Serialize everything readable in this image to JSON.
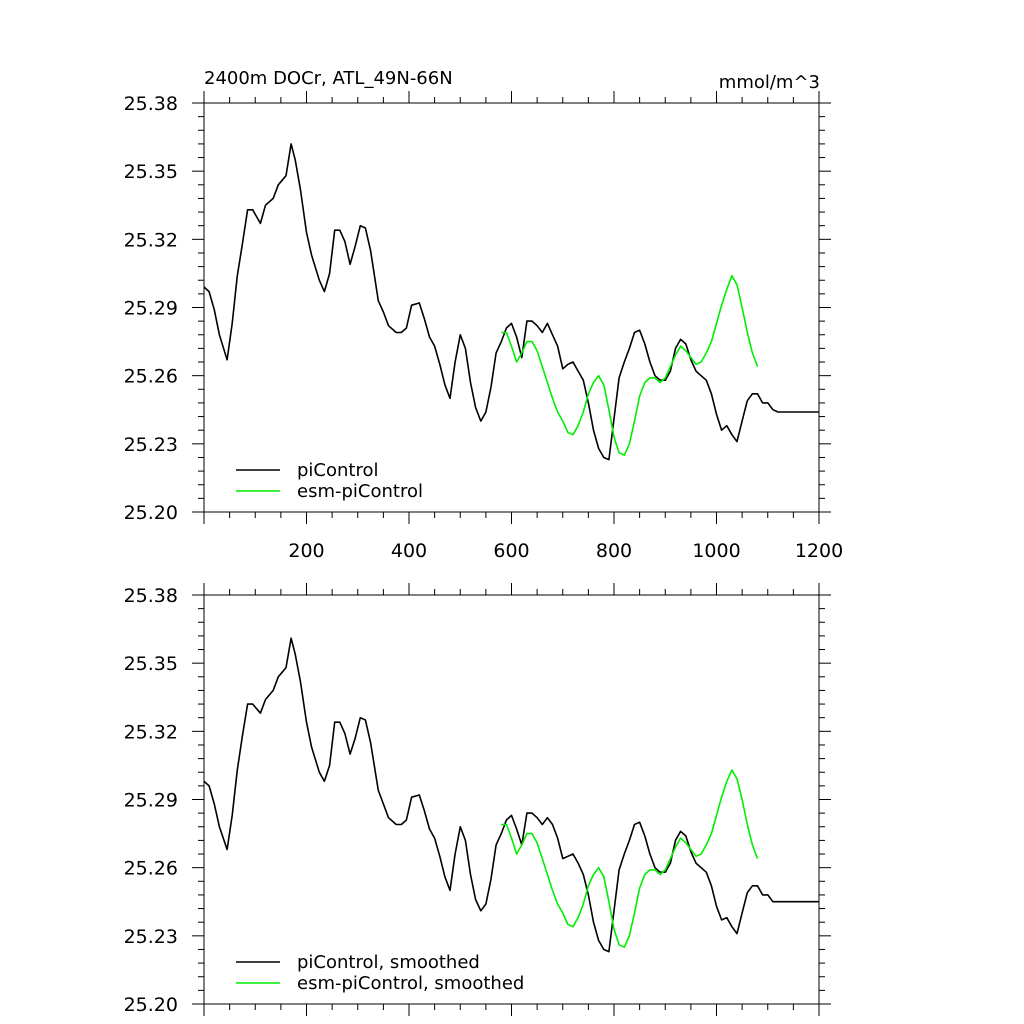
{
  "chart_data": [
    {
      "type": "line",
      "title": "2400m DOCr, ATL_49N-66N",
      "units": "mmol/m^3",
      "xlim": [
        0,
        1200
      ],
      "ylim": [
        25.2,
        25.38
      ],
      "xticks": [
        200,
        400,
        600,
        800,
        1000,
        1200
      ],
      "xtick_labels": [
        "200",
        "400",
        "600",
        "800",
        "1000",
        "1200"
      ],
      "yticks": [
        25.2,
        25.23,
        25.26,
        25.29,
        25.32,
        25.35,
        25.38
      ],
      "ytick_labels": [
        "25.20",
        "25.23",
        "25.26",
        "25.29",
        "25.32",
        "25.35",
        "25.38"
      ],
      "legend_position": "bottom-left",
      "series": [
        {
          "name": "piControl",
          "color": "#000000",
          "x": [
            0,
            10,
            20,
            30,
            45,
            55,
            65,
            75,
            85,
            95,
            110,
            120,
            135,
            145,
            160,
            170,
            178,
            188,
            200,
            210,
            225,
            235,
            245,
            255,
            265,
            275,
            285,
            295,
            305,
            315,
            325,
            340,
            350,
            360,
            375,
            385,
            395,
            405,
            420,
            430,
            440,
            450,
            460,
            470,
            480,
            490,
            500,
            510,
            520,
            530,
            540,
            550,
            560,
            570,
            580,
            590,
            600,
            610,
            620,
            630,
            640,
            650,
            660,
            670,
            680,
            690,
            700,
            710,
            720,
            730,
            740,
            750,
            760,
            770,
            780,
            790,
            800,
            810,
            820,
            830,
            840,
            850,
            860,
            870,
            880,
            890,
            900,
            910,
            920,
            930,
            940,
            950,
            960,
            970,
            980,
            990,
            1000,
            1010,
            1020,
            1030,
            1040,
            1050,
            1060,
            1070,
            1080,
            1090,
            1100,
            1110,
            1120,
            1130,
            1140,
            1150,
            1160,
            1170,
            1180,
            1190,
            1200
          ],
          "y": [
            25.299,
            25.297,
            25.289,
            25.278,
            25.267,
            25.283,
            25.304,
            25.318,
            25.333,
            25.333,
            25.327,
            25.335,
            25.338,
            25.344,
            25.348,
            25.362,
            25.355,
            25.342,
            25.323,
            25.313,
            25.302,
            25.297,
            25.305,
            25.324,
            25.324,
            25.319,
            25.309,
            25.317,
            25.326,
            25.325,
            25.315,
            25.293,
            25.288,
            25.282,
            25.279,
            25.279,
            25.281,
            25.291,
            25.292,
            25.285,
            25.277,
            25.273,
            25.265,
            25.256,
            25.25,
            25.266,
            25.278,
            25.272,
            25.257,
            25.246,
            25.24,
            25.244,
            25.255,
            25.27,
            25.275,
            25.281,
            25.283,
            25.277,
            25.268,
            25.284,
            25.284,
            25.282,
            25.279,
            25.283,
            25.278,
            25.273,
            25.263,
            25.265,
            25.266,
            25.262,
            25.258,
            25.248,
            25.236,
            25.228,
            25.224,
            25.223,
            25.241,
            25.259,
            25.266,
            25.272,
            25.279,
            25.28,
            25.274,
            25.266,
            25.26,
            25.258,
            25.258,
            25.262,
            25.272,
            25.276,
            25.274,
            25.267,
            25.262,
            25.26,
            25.258,
            25.252,
            25.243,
            25.236,
            25.238,
            25.234,
            25.231,
            25.24,
            25.249,
            25.252,
            25.252,
            25.248,
            25.248,
            25.245,
            25.244,
            25.244,
            25.244,
            25.244,
            25.244,
            25.244,
            25.244,
            25.244,
            25.244
          ]
        },
        {
          "name": "esm-piControl",
          "color": "#00ee00",
          "x": [
            580,
            590,
            600,
            610,
            620,
            630,
            640,
            650,
            660,
            670,
            680,
            690,
            700,
            710,
            720,
            730,
            740,
            750,
            760,
            770,
            780,
            790,
            800,
            810,
            820,
            830,
            840,
            850,
            860,
            870,
            880,
            890,
            900,
            910,
            920,
            930,
            940,
            950,
            960,
            970,
            980,
            990,
            1000,
            1010,
            1020,
            1030,
            1040,
            1050,
            1060,
            1070,
            1080
          ],
          "y": [
            25.279,
            25.279,
            25.273,
            25.266,
            25.27,
            25.275,
            25.275,
            25.271,
            25.264,
            25.257,
            25.25,
            25.244,
            25.24,
            25.235,
            25.234,
            25.238,
            25.244,
            25.252,
            25.257,
            25.26,
            25.256,
            25.245,
            25.233,
            25.226,
            25.225,
            25.23,
            25.24,
            25.251,
            25.257,
            25.259,
            25.259,
            25.257,
            25.259,
            25.264,
            25.269,
            25.273,
            25.271,
            25.268,
            25.265,
            25.266,
            25.27,
            25.275,
            25.283,
            25.291,
            25.298,
            25.304,
            25.3,
            25.29,
            25.279,
            25.27,
            25.264
          ]
        }
      ]
    },
    {
      "type": "line",
      "title": "",
      "xlim": [
        0,
        1200
      ],
      "ylim": [
        25.2,
        25.38
      ],
      "yticks": [
        25.2,
        25.23,
        25.26,
        25.29,
        25.32,
        25.35,
        25.38
      ],
      "ytick_labels": [
        "25.20",
        "25.23",
        "25.26",
        "25.29",
        "25.32",
        "25.35",
        "25.38"
      ],
      "legend_position": "bottom-left",
      "series": [
        {
          "name": "piControl, smoothed",
          "color": "#000000",
          "x": [
            0,
            10,
            20,
            30,
            45,
            55,
            65,
            75,
            85,
            95,
            110,
            120,
            135,
            145,
            160,
            170,
            178,
            188,
            200,
            210,
            225,
            235,
            245,
            255,
            265,
            275,
            285,
            295,
            305,
            315,
            325,
            340,
            350,
            360,
            375,
            385,
            395,
            405,
            420,
            430,
            440,
            450,
            460,
            470,
            480,
            490,
            500,
            510,
            520,
            530,
            540,
            550,
            560,
            570,
            580,
            590,
            600,
            610,
            620,
            630,
            640,
            650,
            660,
            670,
            680,
            690,
            700,
            710,
            720,
            730,
            740,
            750,
            760,
            770,
            780,
            790,
            800,
            810,
            820,
            830,
            840,
            850,
            860,
            870,
            880,
            890,
            900,
            910,
            920,
            930,
            940,
            950,
            960,
            970,
            980,
            990,
            1000,
            1010,
            1020,
            1030,
            1040,
            1050,
            1060,
            1070,
            1080,
            1090,
            1100,
            1110,
            1120,
            1130,
            1140,
            1150,
            1160,
            1170,
            1180,
            1190,
            1200
          ],
          "y": [
            25.298,
            25.296,
            25.288,
            25.278,
            25.268,
            25.283,
            25.303,
            25.318,
            25.332,
            25.332,
            25.328,
            25.334,
            25.338,
            25.344,
            25.348,
            25.361,
            25.354,
            25.342,
            25.324,
            25.313,
            25.302,
            25.298,
            25.305,
            25.324,
            25.324,
            25.319,
            25.31,
            25.317,
            25.326,
            25.325,
            25.315,
            25.294,
            25.288,
            25.282,
            25.279,
            25.279,
            25.281,
            25.291,
            25.292,
            25.285,
            25.277,
            25.273,
            25.265,
            25.256,
            25.25,
            25.266,
            25.278,
            25.272,
            25.257,
            25.246,
            25.241,
            25.244,
            25.255,
            25.27,
            25.275,
            25.281,
            25.283,
            25.277,
            25.27,
            25.284,
            25.284,
            25.282,
            25.279,
            25.282,
            25.279,
            25.273,
            25.264,
            25.265,
            25.266,
            25.262,
            25.257,
            25.248,
            25.236,
            25.228,
            25.224,
            25.223,
            25.241,
            25.259,
            25.266,
            25.272,
            25.279,
            25.28,
            25.274,
            25.266,
            25.26,
            25.258,
            25.258,
            25.262,
            25.272,
            25.276,
            25.274,
            25.267,
            25.262,
            25.26,
            25.258,
            25.252,
            25.243,
            25.237,
            25.238,
            25.234,
            25.231,
            25.24,
            25.249,
            25.252,
            25.252,
            25.248,
            25.248,
            25.245,
            25.245,
            25.245,
            25.245,
            25.245,
            25.245,
            25.245,
            25.245,
            25.245,
            25.245
          ]
        },
        {
          "name": "esm-piControl, smoothed",
          "color": "#00ee00",
          "x": [
            580,
            590,
            600,
            610,
            620,
            630,
            640,
            650,
            660,
            670,
            680,
            690,
            700,
            710,
            720,
            730,
            740,
            750,
            760,
            770,
            780,
            790,
            800,
            810,
            820,
            830,
            840,
            850,
            860,
            870,
            880,
            890,
            900,
            910,
            920,
            930,
            940,
            950,
            960,
            970,
            980,
            990,
            1000,
            1010,
            1020,
            1030,
            1040,
            1050,
            1060,
            1070,
            1080
          ],
          "y": [
            25.279,
            25.279,
            25.273,
            25.266,
            25.27,
            25.275,
            25.275,
            25.271,
            25.264,
            25.257,
            25.25,
            25.244,
            25.24,
            25.235,
            25.234,
            25.238,
            25.244,
            25.252,
            25.257,
            25.26,
            25.256,
            25.245,
            25.233,
            25.226,
            25.225,
            25.23,
            25.24,
            25.251,
            25.257,
            25.259,
            25.259,
            25.257,
            25.259,
            25.264,
            25.269,
            25.273,
            25.271,
            25.268,
            25.265,
            25.266,
            25.27,
            25.275,
            25.283,
            25.291,
            25.298,
            25.303,
            25.299,
            25.29,
            25.279,
            25.27,
            25.264
          ]
        }
      ]
    }
  ]
}
